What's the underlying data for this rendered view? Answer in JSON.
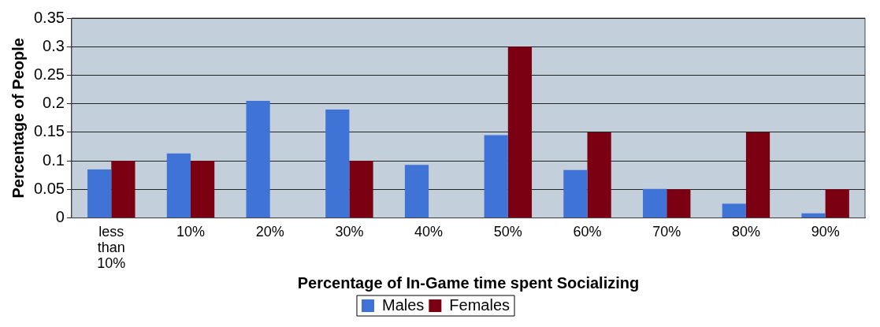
{
  "chart_data": {
    "type": "bar",
    "xlabel": "Percentage of In-Game time spent Socializing",
    "ylabel": "Percentage of People",
    "categories": [
      "less than 10%",
      "10%",
      "20%",
      "30%",
      "40%",
      "50%",
      "60%",
      "70%",
      "80%",
      "90%"
    ],
    "series": [
      {
        "name": "Males",
        "color": "#3f73d6",
        "values": [
          0.085,
          0.113,
          0.205,
          0.19,
          0.093,
          0.145,
          0.084,
          0.051,
          0.025,
          0.008
        ]
      },
      {
        "name": "Females",
        "color": "#7a0012",
        "values": [
          0.1,
          0.1,
          0,
          0.1,
          0,
          0.3,
          0.15,
          0.05,
          0.15,
          0.05
        ]
      }
    ],
    "ylim": [
      0,
      0.35
    ],
    "yticks": [
      0,
      0.05,
      0.1,
      0.15,
      0.2,
      0.25,
      0.3,
      0.35
    ],
    "grid": "y",
    "legend": "bottom"
  }
}
